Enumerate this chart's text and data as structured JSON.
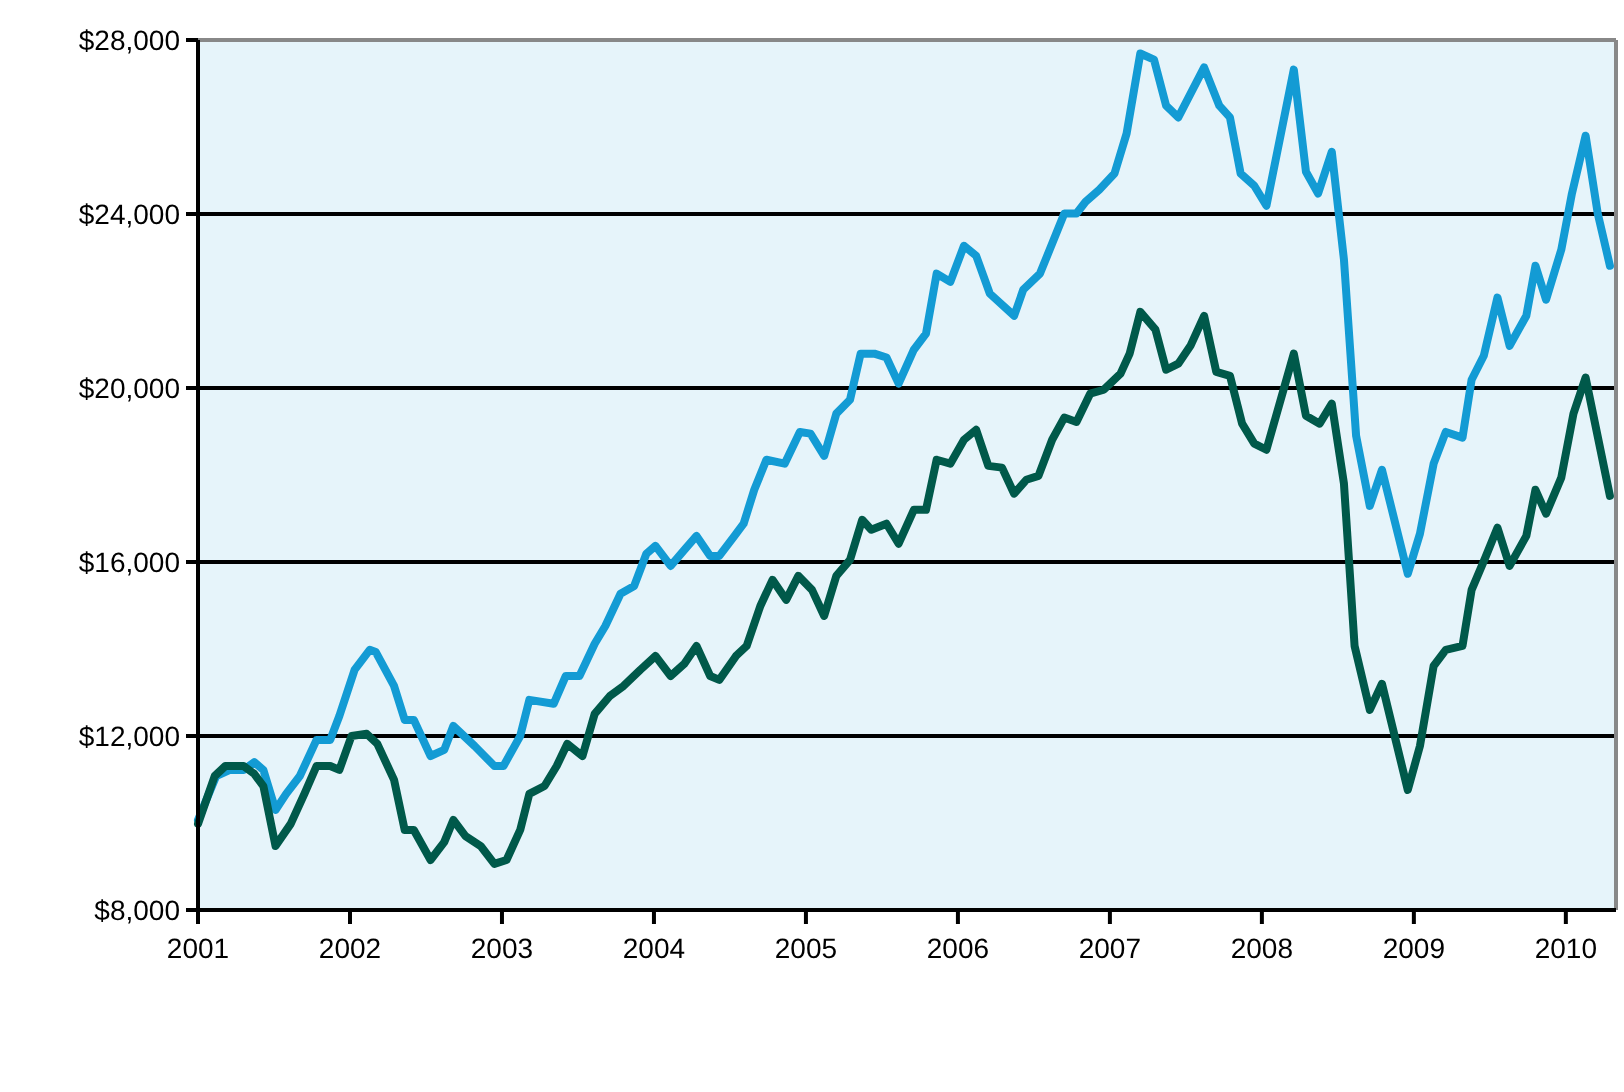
{
  "chart_data": {
    "type": "line",
    "xlim": [
      2001,
      2010.33
    ],
    "xticks": [
      2001,
      2002,
      2003,
      2004,
      2005,
      2006,
      2007,
      2008,
      2009,
      2010
    ],
    "ylim": [
      8000,
      28000
    ],
    "yticks": [
      {
        "value": 8000,
        "label": "$8,000"
      },
      {
        "value": 12000,
        "label": "$12,000"
      },
      {
        "value": 16000,
        "label": "$16,000"
      },
      {
        "value": 20000,
        "label": "$20,000"
      },
      {
        "value": 24000,
        "label": "$24,000"
      },
      {
        "value": 28000,
        "label": "$28,000"
      }
    ],
    "grid": "y",
    "line_style": "solid",
    "marker": "none",
    "series": [
      {
        "color": "#139bd4",
        "x": [
          2001.0,
          2001.12,
          2001.21,
          2001.3,
          2001.37,
          2001.43,
          2001.51,
          2001.58,
          2001.67,
          2001.78,
          2001.87,
          2001.93,
          2002.03,
          2002.13,
          2002.17,
          2002.29,
          2002.36,
          2002.42,
          2002.53,
          2002.62,
          2002.68,
          2002.82,
          2002.95,
          2003.01,
          2003.12,
          2003.18,
          2003.34,
          2003.42,
          2003.51,
          2003.61,
          2003.68,
          2003.78,
          2003.87,
          2003.95,
          2004.01,
          2004.11,
          2004.2,
          2004.28,
          2004.37,
          2004.43,
          2004.53,
          2004.59,
          2004.66,
          2004.74,
          2004.86,
          2004.96,
          2005.03,
          2005.12,
          2005.2,
          2005.29,
          2005.36,
          2005.45,
          2005.53,
          2005.61,
          2005.71,
          2005.79,
          2005.86,
          2005.95,
          2006.04,
          2006.12,
          2006.21,
          2006.37,
          2006.43,
          2006.54,
          2006.7,
          2006.78,
          2006.84,
          2006.93,
          2007.03,
          2007.11,
          2007.2,
          2007.29,
          2007.37,
          2007.45,
          2007.62,
          2007.72,
          2007.79,
          2007.86,
          2007.95,
          2008.03,
          2008.21,
          2008.29,
          2008.37,
          2008.46,
          2008.54,
          2008.62,
          2008.71,
          2008.79,
          2008.96,
          2009.04,
          2009.13,
          2009.21,
          2009.32,
          2009.38,
          2009.46,
          2009.55,
          2009.63,
          2009.74,
          2009.8,
          2009.87,
          2009.97,
          2010.04,
          2010.13,
          2010.21,
          2010.29
        ],
        "values": [
          10070,
          11080,
          11220,
          11220,
          11400,
          11220,
          10300,
          10670,
          11080,
          11910,
          11910,
          12460,
          13520,
          13980,
          13930,
          13150,
          12370,
          12370,
          11540,
          11680,
          12230,
          11770,
          11310,
          11310,
          12000,
          12830,
          12740,
          13380,
          13380,
          14120,
          14530,
          15270,
          15450,
          16190,
          16370,
          15910,
          16280,
          16600,
          16140,
          16140,
          16600,
          16880,
          17660,
          18350,
          18260,
          18990,
          18950,
          18440,
          19410,
          19730,
          20790,
          20790,
          20700,
          20100,
          20880,
          21250,
          22630,
          22440,
          23270,
          23040,
          22170,
          21660,
          22260,
          22630,
          24010,
          24010,
          24280,
          24560,
          24930,
          25850,
          27690,
          27550,
          26490,
          26220,
          27370,
          26490,
          26220,
          24930,
          24650,
          24190,
          27320,
          24970,
          24470,
          25430,
          22950,
          18900,
          17290,
          18120,
          15730,
          16650,
          18260,
          18990,
          18860,
          20190,
          20740,
          22080,
          20970,
          21660,
          22810,
          22030,
          23180,
          24470,
          25800,
          24010,
          22810
        ]
      },
      {
        "color": "#00594a",
        "x": [
          2001.0,
          2001.11,
          2001.18,
          2001.3,
          2001.37,
          2001.43,
          2001.51,
          2001.61,
          2001.7,
          2001.78,
          2001.87,
          2001.93,
          2002.01,
          2002.11,
          2002.18,
          2002.29,
          2002.36,
          2002.42,
          2002.53,
          2002.62,
          2002.68,
          2002.76,
          2002.86,
          2002.95,
          2003.03,
          2003.12,
          2003.18,
          2003.28,
          2003.36,
          2003.43,
          2003.53,
          2003.61,
          2003.71,
          2003.8,
          2003.91,
          2004.01,
          2004.11,
          2004.2,
          2004.28,
          2004.37,
          2004.43,
          2004.54,
          2004.61,
          2004.7,
          2004.78,
          2004.87,
          2004.95,
          2005.04,
          2005.12,
          2005.2,
          2005.29,
          2005.37,
          2005.43,
          2005.53,
          2005.61,
          2005.71,
          2005.79,
          2005.86,
          2005.95,
          2006.04,
          2006.12,
          2006.2,
          2006.29,
          2006.37,
          2006.45,
          2006.53,
          2006.62,
          2006.7,
          2006.78,
          2006.87,
          2006.96,
          2007.07,
          2007.13,
          2007.2,
          2007.3,
          2007.37,
          2007.45,
          2007.53,
          2007.62,
          2007.7,
          2007.79,
          2007.87,
          2007.95,
          2008.03,
          2008.21,
          2008.29,
          2008.38,
          2008.46,
          2008.54,
          2008.61,
          2008.71,
          2008.79,
          2008.96,
          2009.04,
          2009.13,
          2009.21,
          2009.32,
          2009.38,
          2009.47,
          2009.55,
          2009.63,
          2009.74,
          2009.8,
          2009.87,
          2009.97,
          2010.05,
          2010.13,
          2010.29
        ],
        "values": [
          9980,
          11080,
          11310,
          11310,
          11130,
          10850,
          9470,
          9980,
          10670,
          11310,
          11310,
          11220,
          12000,
          12050,
          11820,
          10990,
          9840,
          9840,
          9150,
          9560,
          10070,
          9700,
          9470,
          9060,
          9150,
          9840,
          10670,
          10850,
          11310,
          11820,
          11540,
          12510,
          12920,
          13150,
          13520,
          13840,
          13380,
          13660,
          14070,
          13380,
          13290,
          13840,
          14070,
          14990,
          15590,
          15130,
          15680,
          15360,
          14760,
          15680,
          16050,
          16970,
          16740,
          16880,
          16420,
          17200,
          17200,
          18350,
          18260,
          18810,
          19040,
          18210,
          18170,
          17570,
          17890,
          17980,
          18810,
          19320,
          19220,
          19870,
          19960,
          20330,
          20790,
          21750,
          21340,
          20420,
          20560,
          20970,
          21660,
          20370,
          20280,
          19180,
          18720,
          18580,
          20790,
          19360,
          19180,
          19640,
          17800,
          14070,
          12600,
          13200,
          10760,
          11770,
          13610,
          13980,
          14070,
          15360,
          16100,
          16790,
          15910,
          16600,
          17660,
          17110,
          17940,
          19410,
          20240,
          17520
        ]
      }
    ]
  }
}
